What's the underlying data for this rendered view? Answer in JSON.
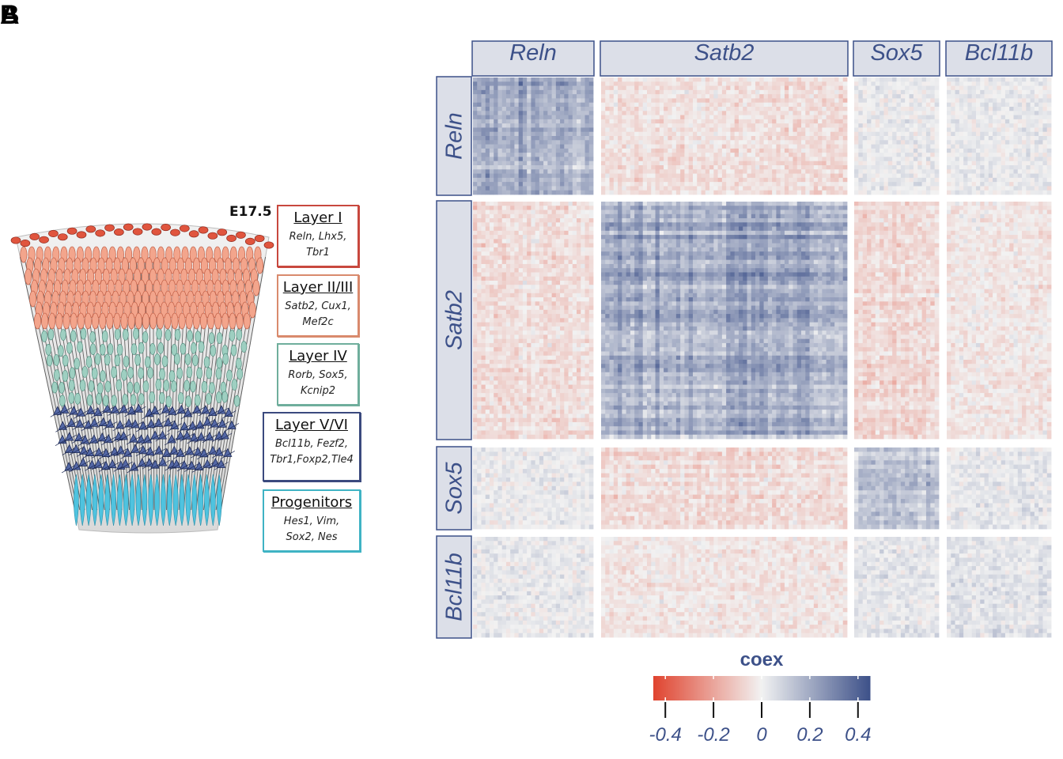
{
  "panels": {
    "a_label": "A",
    "b_label": "B"
  },
  "panel_a": {
    "stage": "E17.5",
    "layers": [
      {
        "title": "Layer I",
        "genes_line1": "Reln, Lhx5,",
        "genes_line2": "Tbr1",
        "color": "#c8483e"
      },
      {
        "title": "Layer II/III",
        "genes_line1": "Satb2, Cux1,",
        "genes_line2": "Mef2c",
        "color": "#d98a6d"
      },
      {
        "title": "Layer IV",
        "genes_line1": "Rorb, Sox5,",
        "genes_line2": "Kcnip2",
        "color": "#6fae9c"
      },
      {
        "title": "Layer V/VI",
        "genes_line1": "Bcl11b, Fezf2,",
        "genes_line2": "Tbr1,Foxp2,Tle4",
        "color": "#3b4a7e"
      },
      {
        "title": "Progenitors",
        "genes_line1": "Hes1, Vim,",
        "genes_line2": "Sox2, Nes",
        "color": "#3fb3c4"
      }
    ]
  },
  "chart_data": {
    "type": "heatmap",
    "title": "",
    "groups": [
      "Reln",
      "Satb2",
      "Sox5",
      "Bcl11b"
    ],
    "group_block_means": [
      [
        0.18,
        -0.05,
        0.02,
        0.02
      ],
      [
        -0.05,
        0.2,
        -0.06,
        -0.03
      ],
      [
        0.02,
        -0.06,
        0.12,
        0.03
      ],
      [
        0.02,
        -0.03,
        0.03,
        0.04
      ]
    ],
    "legend": {
      "title": "coex",
      "range": [
        -0.45,
        0.45
      ],
      "ticks": [
        -0.4,
        -0.2,
        0,
        0.2,
        0.4
      ],
      "tick_labels": [
        "-0.4",
        "-0.2",
        "0",
        "0.2",
        "0.4"
      ],
      "low_color": "#e0442f",
      "mid_color": "#f2f2f2",
      "high_color": "#3d5189"
    },
    "strip_fill": "#dcdfe8",
    "strip_border": "#3d5189",
    "strip_text_color": "#3d5189"
  }
}
